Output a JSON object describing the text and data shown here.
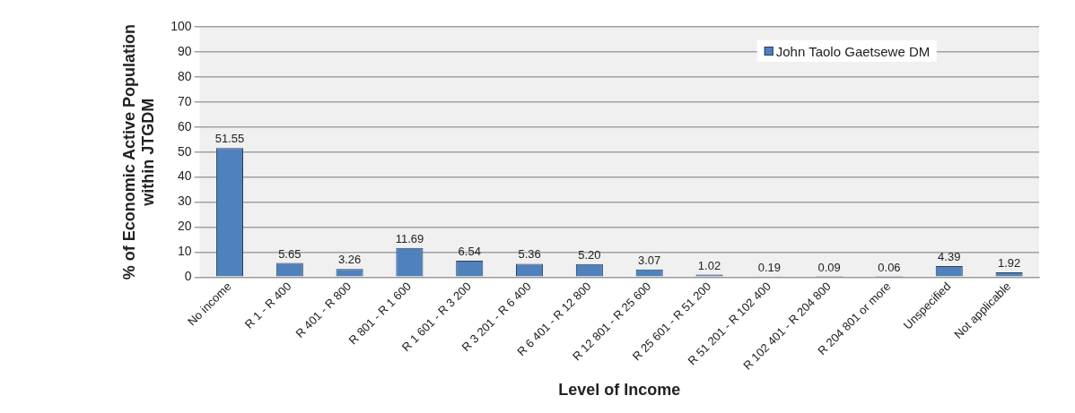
{
  "chart_data": {
    "type": "bar",
    "xlabel": "Level of Income",
    "ylabel": "% of Economic Active Population within JTGDM",
    "categories": [
      "No income",
      "R 1 - R 400",
      "R 401 - R 800",
      "R 801 - R 1 600",
      "R 1 601 - R 3 200",
      "R 3 201 - R 6 400",
      "R 6 401 - R 12 800",
      "R 12 801 - R 25 600",
      "R 25 601 - R 51 200",
      "R 51 201 - R 102 400",
      "R 102 401 - R 204 800",
      "R 204 801 or more",
      "Unspecified",
      "Not applicable"
    ],
    "series": [
      {
        "name": "John Taolo Gaetsewe DM",
        "color": "#4f81bd",
        "values": [
          51.55,
          5.65,
          3.26,
          11.69,
          6.54,
          5.36,
          5.2,
          3.07,
          1.02,
          0.19,
          0.09,
          0.06,
          4.39,
          1.92
        ],
        "value_labels": [
          "51.55",
          "5.65",
          "3.26",
          "11.69",
          "6.54",
          "5.36",
          "5.20",
          "3.07",
          "1.02",
          "0.19",
          "0.09",
          "0.06",
          "4.39",
          "1.92"
        ]
      }
    ],
    "ylim": [
      0,
      100
    ],
    "yticks": [
      0,
      10,
      20,
      30,
      40,
      50,
      60,
      70,
      80,
      90,
      100
    ],
    "grid": "y",
    "legend": "top right"
  }
}
